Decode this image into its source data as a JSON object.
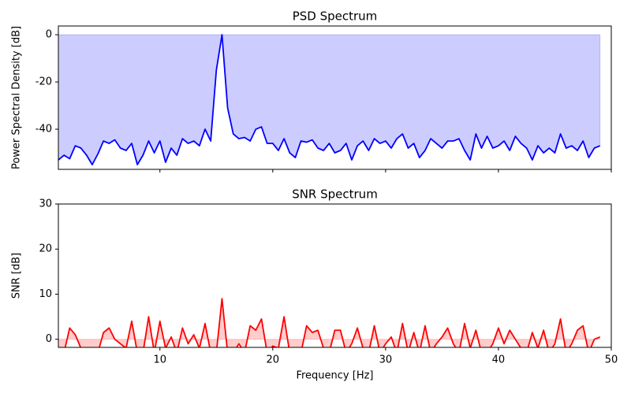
{
  "chart_data": [
    {
      "type": "line",
      "title": "PSD Spectrum",
      "ylabel": "Power Spectral Density [dB]",
      "color": "#0000ff",
      "fill_color": "#0000ff",
      "x": [
        1,
        1.5,
        2,
        2.5,
        3,
        3.5,
        4,
        4.5,
        5,
        5.5,
        6,
        6.5,
        7,
        7.5,
        8,
        8.5,
        9,
        9.5,
        10,
        10.5,
        11,
        11.5,
        12,
        12.5,
        13,
        13.5,
        14,
        14.5,
        15,
        15.5,
        16,
        16.5,
        17,
        17.5,
        18,
        18.5,
        19,
        19.5,
        20,
        20.5,
        21,
        21.5,
        22,
        22.5,
        23,
        23.5,
        24,
        24.5,
        25,
        25.5,
        26,
        26.5,
        27,
        27.5,
        28,
        28.5,
        29,
        29.5,
        30,
        30.5,
        31,
        31.5,
        32,
        32.5,
        33,
        33.5,
        34,
        34.5,
        35,
        35.5,
        36,
        36.5,
        37,
        37.5,
        38,
        38.5,
        39,
        39.5,
        40,
        40.5,
        41,
        41.5,
        42,
        42.5,
        43,
        43.5,
        44,
        44.5,
        45,
        45.5,
        46,
        46.5,
        47,
        47.5,
        48,
        48.5,
        49
      ],
      "values": [
        -53,
        -51,
        -52.5,
        -47,
        -48,
        -51,
        -55,
        -50.5,
        -45,
        -46,
        -44.5,
        -48,
        -49,
        -46,
        -55,
        -51,
        -45,
        -50,
        -45,
        -54,
        -48,
        -51,
        -44,
        -46,
        -45,
        -47,
        -40,
        -45,
        -15,
        0,
        -31,
        -42,
        -44,
        -43.5,
        -45,
        -40,
        -39,
        -46,
        -46,
        -49,
        -44,
        -50,
        -52,
        -45,
        -45.5,
        -44.5,
        -48,
        -49,
        -46,
        -50,
        -49,
        -46,
        -53,
        -47,
        -45,
        -49,
        -44,
        -46,
        -45,
        -48,
        -44,
        -42,
        -48,
        -46,
        -52,
        -49,
        -44,
        -46,
        -48,
        -45,
        -45,
        -44,
        -49,
        -53,
        -42,
        -48,
        -43,
        -48,
        -47,
        -45,
        -49,
        -43,
        -46,
        -48,
        -53,
        -47,
        -50,
        -48,
        -50,
        -42,
        -48,
        -47,
        -49,
        -45,
        -52,
        -48,
        -47
      ],
      "xlim": [
        1,
        50
      ],
      "xticks": [
        10,
        20,
        30,
        40,
        50
      ],
      "xtick_labels": false,
      "ylim": [
        -57,
        3.7
      ],
      "yticks": [
        0,
        -20,
        -40
      ]
    },
    {
      "type": "line",
      "title": "SNR Spectrum",
      "ylabel": "SNR [dB]",
      "xlabel": "Frequency [Hz]",
      "color": "#ff0000",
      "fill_color": "#ff0000",
      "x": [
        1,
        1.5,
        2,
        2.5,
        3,
        3.5,
        4,
        4.5,
        5,
        5.5,
        6,
        6.5,
        7,
        7.5,
        8,
        8.5,
        9,
        9.5,
        10,
        10.5,
        11,
        11.5,
        12,
        12.5,
        13,
        13.5,
        14,
        14.5,
        15,
        15.5,
        16,
        16.5,
        17,
        17.5,
        18,
        18.5,
        19,
        19.5,
        20,
        20.5,
        21,
        21.5,
        22,
        22.5,
        23,
        23.5,
        24,
        24.5,
        25,
        25.5,
        26,
        26.5,
        27,
        27.5,
        28,
        28.5,
        29,
        29.5,
        30,
        30.5,
        31,
        31.5,
        32,
        32.5,
        33,
        33.5,
        34,
        34.5,
        35,
        35.5,
        36,
        36.5,
        37,
        37.5,
        38,
        38.5,
        39,
        39.5,
        40,
        40.5,
        41,
        41.5,
        42,
        42.5,
        43,
        43.5,
        44,
        44.5,
        45,
        45.5,
        46,
        46.5,
        47,
        47.5,
        48,
        48.5,
        49
      ],
      "values": [
        -3,
        -3,
        2.5,
        1,
        -2,
        -3,
        -3,
        -3,
        1.5,
        2.5,
        0,
        -1,
        -2,
        4,
        -3,
        -3,
        5,
        -3,
        4,
        -2,
        0.5,
        -3,
        2.5,
        -1,
        1,
        -2,
        3.5,
        -3,
        -3,
        9,
        -3,
        -3,
        -1,
        -3,
        3,
        2,
        4.5,
        -3,
        -1.5,
        -2,
        5,
        -3,
        -3,
        -3,
        3,
        1.5,
        2,
        -2,
        -3,
        2,
        2,
        -3,
        -1,
        2.5,
        -2,
        -3,
        3,
        -3,
        -1,
        0.5,
        -3,
        3.5,
        -3,
        1.5,
        -3,
        3,
        -3,
        -1,
        0.5,
        2.5,
        -1,
        -3,
        3.5,
        -2,
        2,
        -3,
        -3,
        -1,
        2.5,
        -1,
        2,
        0,
        -2,
        -3,
        1.5,
        -2,
        2,
        -3,
        -1,
        4.5,
        -3,
        -1,
        2,
        3,
        -3,
        0,
        0.5
      ],
      "xlim": [
        1,
        50
      ],
      "xticks": [
        10,
        20,
        30,
        40,
        50
      ],
      "xtick_labels": true,
      "ylim": [
        -1.8,
        30
      ],
      "yticks": [
        0,
        10,
        20,
        30
      ]
    }
  ]
}
